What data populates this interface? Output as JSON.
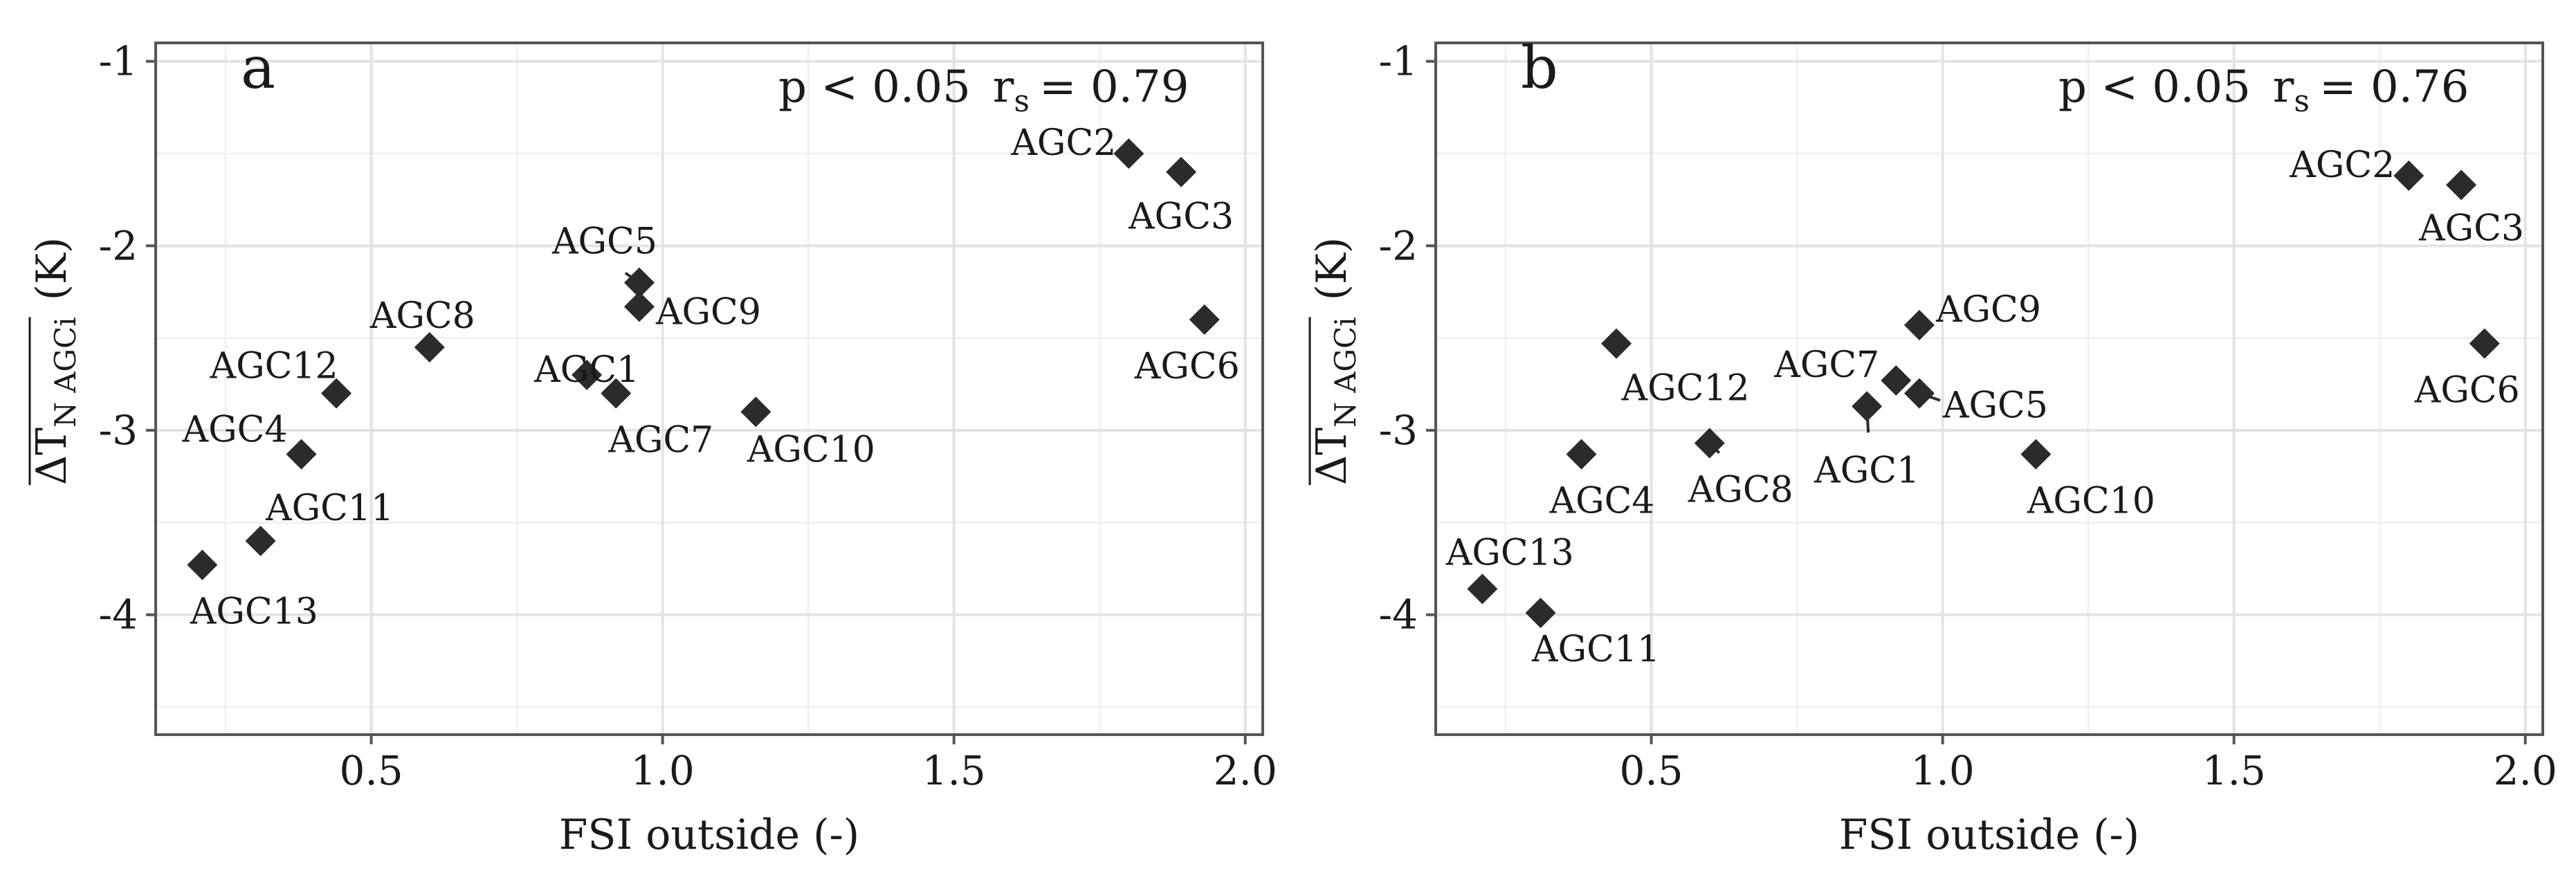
{
  "chart_data": [
    {
      "type": "scatter",
      "panel_label": "a",
      "annotation": {
        "p_text": "p < 0.05",
        "r_symbol": "r",
        "r_sub": "s",
        "r_value": "= 0.79"
      },
      "xlabel": "FSI outside (-)",
      "ylabel": {
        "delta": "ΔT",
        "sub": "N AGCi",
        "unit": "(K)"
      },
      "xlim": [
        0.13,
        2.03
      ],
      "ylim": [
        -4.65,
        -0.9
      ],
      "xticks": [
        0.5,
        1.0,
        1.5,
        2.0
      ],
      "xtick_labels": [
        "0.5",
        "1.0",
        "1.5",
        "2.0"
      ],
      "yticks": [
        -1,
        -2,
        -3,
        -4
      ],
      "ytick_labels": [
        "-1",
        "-2",
        "-3",
        "-4"
      ],
      "grid": true,
      "points": [
        {
          "label": "AGC1",
          "x": 0.87,
          "y": -2.7
        },
        {
          "label": "AGC2",
          "x": 1.8,
          "y": -1.5
        },
        {
          "label": "AGC3",
          "x": 1.89,
          "y": -1.6
        },
        {
          "label": "AGC4",
          "x": 0.38,
          "y": -3.13
        },
        {
          "label": "AGC5",
          "x": 0.96,
          "y": -2.2
        },
        {
          "label": "AGC6",
          "x": 1.93,
          "y": -2.4
        },
        {
          "label": "AGC7",
          "x": 0.92,
          "y": -2.8
        },
        {
          "label": "AGC8",
          "x": 0.6,
          "y": -2.55
        },
        {
          "label": "AGC9",
          "x": 0.96,
          "y": -2.33
        },
        {
          "label": "AGC10",
          "x": 1.16,
          "y": -2.9
        },
        {
          "label": "AGC11",
          "x": 0.31,
          "y": -3.6
        },
        {
          "label": "AGC12",
          "x": 0.44,
          "y": -2.8
        },
        {
          "label": "AGC13",
          "x": 0.21,
          "y": -3.73
        }
      ]
    },
    {
      "type": "scatter",
      "panel_label": "b",
      "annotation": {
        "p_text": "p < 0.05",
        "r_symbol": "r",
        "r_sub": "s",
        "r_value": "= 0.76"
      },
      "xlabel": "FSI outside (-)",
      "ylabel": {
        "delta": "ΔT",
        "sub": "N AGCi",
        "unit": "(K)"
      },
      "xlim": [
        0.13,
        2.03
      ],
      "ylim": [
        -4.65,
        -0.9
      ],
      "xticks": [
        0.5,
        1.0,
        1.5,
        2.0
      ],
      "xtick_labels": [
        "0.5",
        "1.0",
        "1.5",
        "2.0"
      ],
      "yticks": [
        -1,
        -2,
        -3,
        -4
      ],
      "ytick_labels": [
        "-1",
        "-2",
        "-3",
        "-4"
      ],
      "grid": true,
      "points": [
        {
          "label": "AGC1",
          "x": 0.87,
          "y": -2.87
        },
        {
          "label": "AGC2",
          "x": 1.8,
          "y": -1.62
        },
        {
          "label": "AGC3",
          "x": 1.89,
          "y": -1.67
        },
        {
          "label": "AGC4",
          "x": 0.38,
          "y": -3.13
        },
        {
          "label": "AGC5",
          "x": 0.96,
          "y": -2.8
        },
        {
          "label": "AGC6",
          "x": 1.93,
          "y": -2.53
        },
        {
          "label": "AGC7",
          "x": 0.92,
          "y": -2.73
        },
        {
          "label": "AGC8",
          "x": 0.6,
          "y": -3.07
        },
        {
          "label": "AGC9",
          "x": 0.96,
          "y": -2.43
        },
        {
          "label": "AGC10",
          "x": 1.16,
          "y": -3.13
        },
        {
          "label": "AGC11",
          "x": 0.31,
          "y": -3.99
        },
        {
          "label": "AGC12",
          "x": 0.44,
          "y": -2.53
        },
        {
          "label": "AGC13",
          "x": 0.21,
          "y": -3.86
        }
      ]
    }
  ],
  "style": {
    "marker_color": "#2b2b2b",
    "grid_major_color": "#e3e3e3",
    "grid_minor_color": "#f1f1f1",
    "frame_color": "#555555",
    "text_color": "#1a1a1a"
  }
}
